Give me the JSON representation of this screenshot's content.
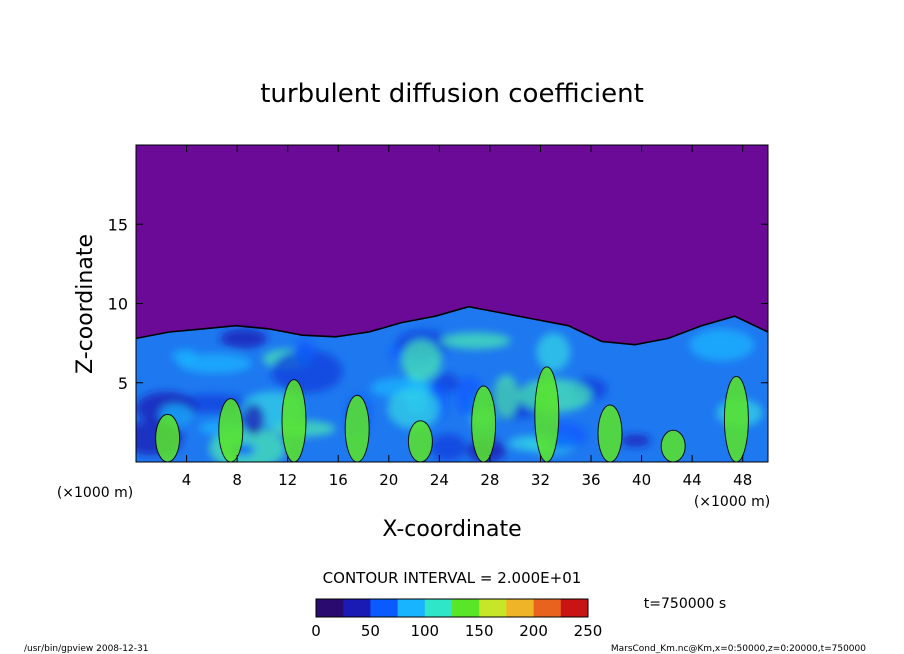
{
  "chart_data": {
    "type": "heatmap",
    "title": "turbulent diffusion coefficient",
    "xlabel": "X-coordinate",
    "ylabel": "Z-coordinate",
    "x_units": "(×1000 m)",
    "y_units": "(×1000 m)",
    "xlim": [
      0,
      50
    ],
    "ylim": [
      0,
      20
    ],
    "x_ticks": [
      4,
      8,
      12,
      16,
      20,
      24,
      28,
      32,
      36,
      40,
      44,
      48
    ],
    "y_ticks": [
      5,
      10,
      15
    ],
    "contour_interval_text": "CONTOUR INTERVAL = 2.000E+01",
    "colorbar": {
      "range": [
        0,
        250
      ],
      "ticks": [
        0,
        50,
        100,
        150,
        200,
        250
      ],
      "colors": [
        "#2a0a6e",
        "#1a1ab4",
        "#0a5aff",
        "#18b4ff",
        "#30e6c8",
        "#5ae628",
        "#c8e628",
        "#f0b428",
        "#e8641e",
        "#c81414"
      ]
    },
    "boundary_layer_top_z": [
      7.8,
      8.2,
      8.4,
      8.6,
      8.4,
      8.0,
      7.9,
      8.2,
      8.8,
      9.2,
      9.8,
      9.4,
      9.0,
      8.6,
      7.6,
      7.4,
      7.8,
      8.6,
      9.2,
      8.2
    ],
    "plume_core_z": [
      3.0,
      4.0,
      5.2,
      4.2,
      2.6,
      4.8,
      6.0,
      3.6,
      2.0,
      5.4
    ]
  },
  "time_label": "t=750000 s",
  "footer": {
    "left": "/usr/bin/gpview   2008-12-31",
    "right": "MarsCond_Km.nc@Km,x=0:50000,z=0:20000,t=750000"
  }
}
